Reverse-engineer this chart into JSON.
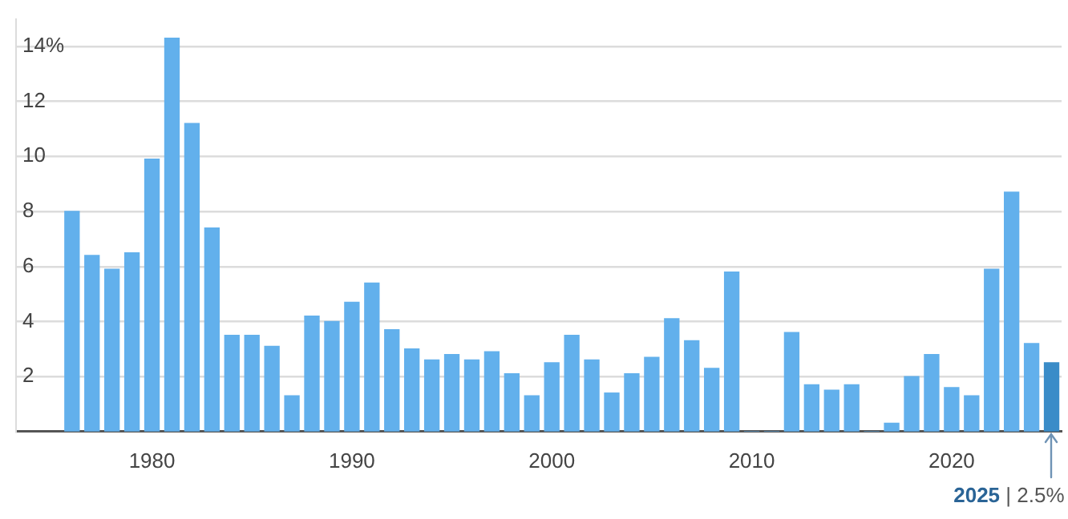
{
  "chart_data": {
    "type": "bar",
    "x": [
      1976,
      1977,
      1978,
      1979,
      1980,
      1981,
      1982,
      1983,
      1984,
      1985,
      1986,
      1987,
      1988,
      1989,
      1990,
      1991,
      1992,
      1993,
      1994,
      1995,
      1996,
      1997,
      1998,
      1999,
      2000,
      2001,
      2002,
      2003,
      2004,
      2005,
      2006,
      2007,
      2008,
      2009,
      2010,
      2011,
      2012,
      2013,
      2014,
      2015,
      2016,
      2017,
      2018,
      2019,
      2020,
      2021,
      2022,
      2023,
      2024,
      2025
    ],
    "values": [
      8.0,
      6.4,
      5.9,
      6.5,
      9.9,
      14.3,
      11.2,
      7.4,
      3.5,
      3.5,
      3.1,
      1.3,
      4.2,
      4.0,
      4.7,
      5.4,
      3.7,
      3.0,
      2.6,
      2.8,
      2.6,
      2.9,
      2.1,
      1.3,
      2.5,
      3.5,
      2.6,
      1.4,
      2.1,
      2.7,
      4.1,
      3.3,
      2.3,
      5.8,
      0,
      0,
      3.6,
      1.7,
      1.5,
      1.7,
      0,
      0.3,
      2.0,
      2.8,
      1.6,
      1.3,
      5.9,
      8.7,
      3.2,
      2.5
    ],
    "colors": [
      "#62b0ec",
      "#62b0ec",
      "#62b0ec",
      "#62b0ec",
      "#62b0ec",
      "#62b0ec",
      "#62b0ec",
      "#62b0ec",
      "#62b0ec",
      "#62b0ec",
      "#62b0ec",
      "#62b0ec",
      "#62b0ec",
      "#62b0ec",
      "#62b0ec",
      "#62b0ec",
      "#62b0ec",
      "#62b0ec",
      "#62b0ec",
      "#62b0ec",
      "#62b0ec",
      "#62b0ec",
      "#62b0ec",
      "#62b0ec",
      "#62b0ec",
      "#62b0ec",
      "#62b0ec",
      "#62b0ec",
      "#62b0ec",
      "#62b0ec",
      "#62b0ec",
      "#62b0ec",
      "#62b0ec",
      "#62b0ec",
      "#62b0ec",
      "#62b0ec",
      "#62b0ec",
      "#62b0ec",
      "#62b0ec",
      "#62b0ec",
      "#62b0ec",
      "#62b0ec",
      "#62b0ec",
      "#62b0ec",
      "#62b0ec",
      "#62b0ec",
      "#62b0ec",
      "#62b0ec",
      "#62b0ec",
      "#3a8cc8"
    ],
    "xlim": [
      1973.2,
      2025.5
    ],
    "xticks": [
      1980,
      1990,
      2000,
      2010,
      2020
    ],
    "ylim": [
      0,
      15
    ],
    "yticks": [
      2,
      4,
      6,
      8,
      10,
      12,
      {
        "value": 14,
        "label": "14%"
      }
    ],
    "grid": "y",
    "legend": false,
    "annotations": [
      "2025 | 2.5%"
    ]
  }
}
